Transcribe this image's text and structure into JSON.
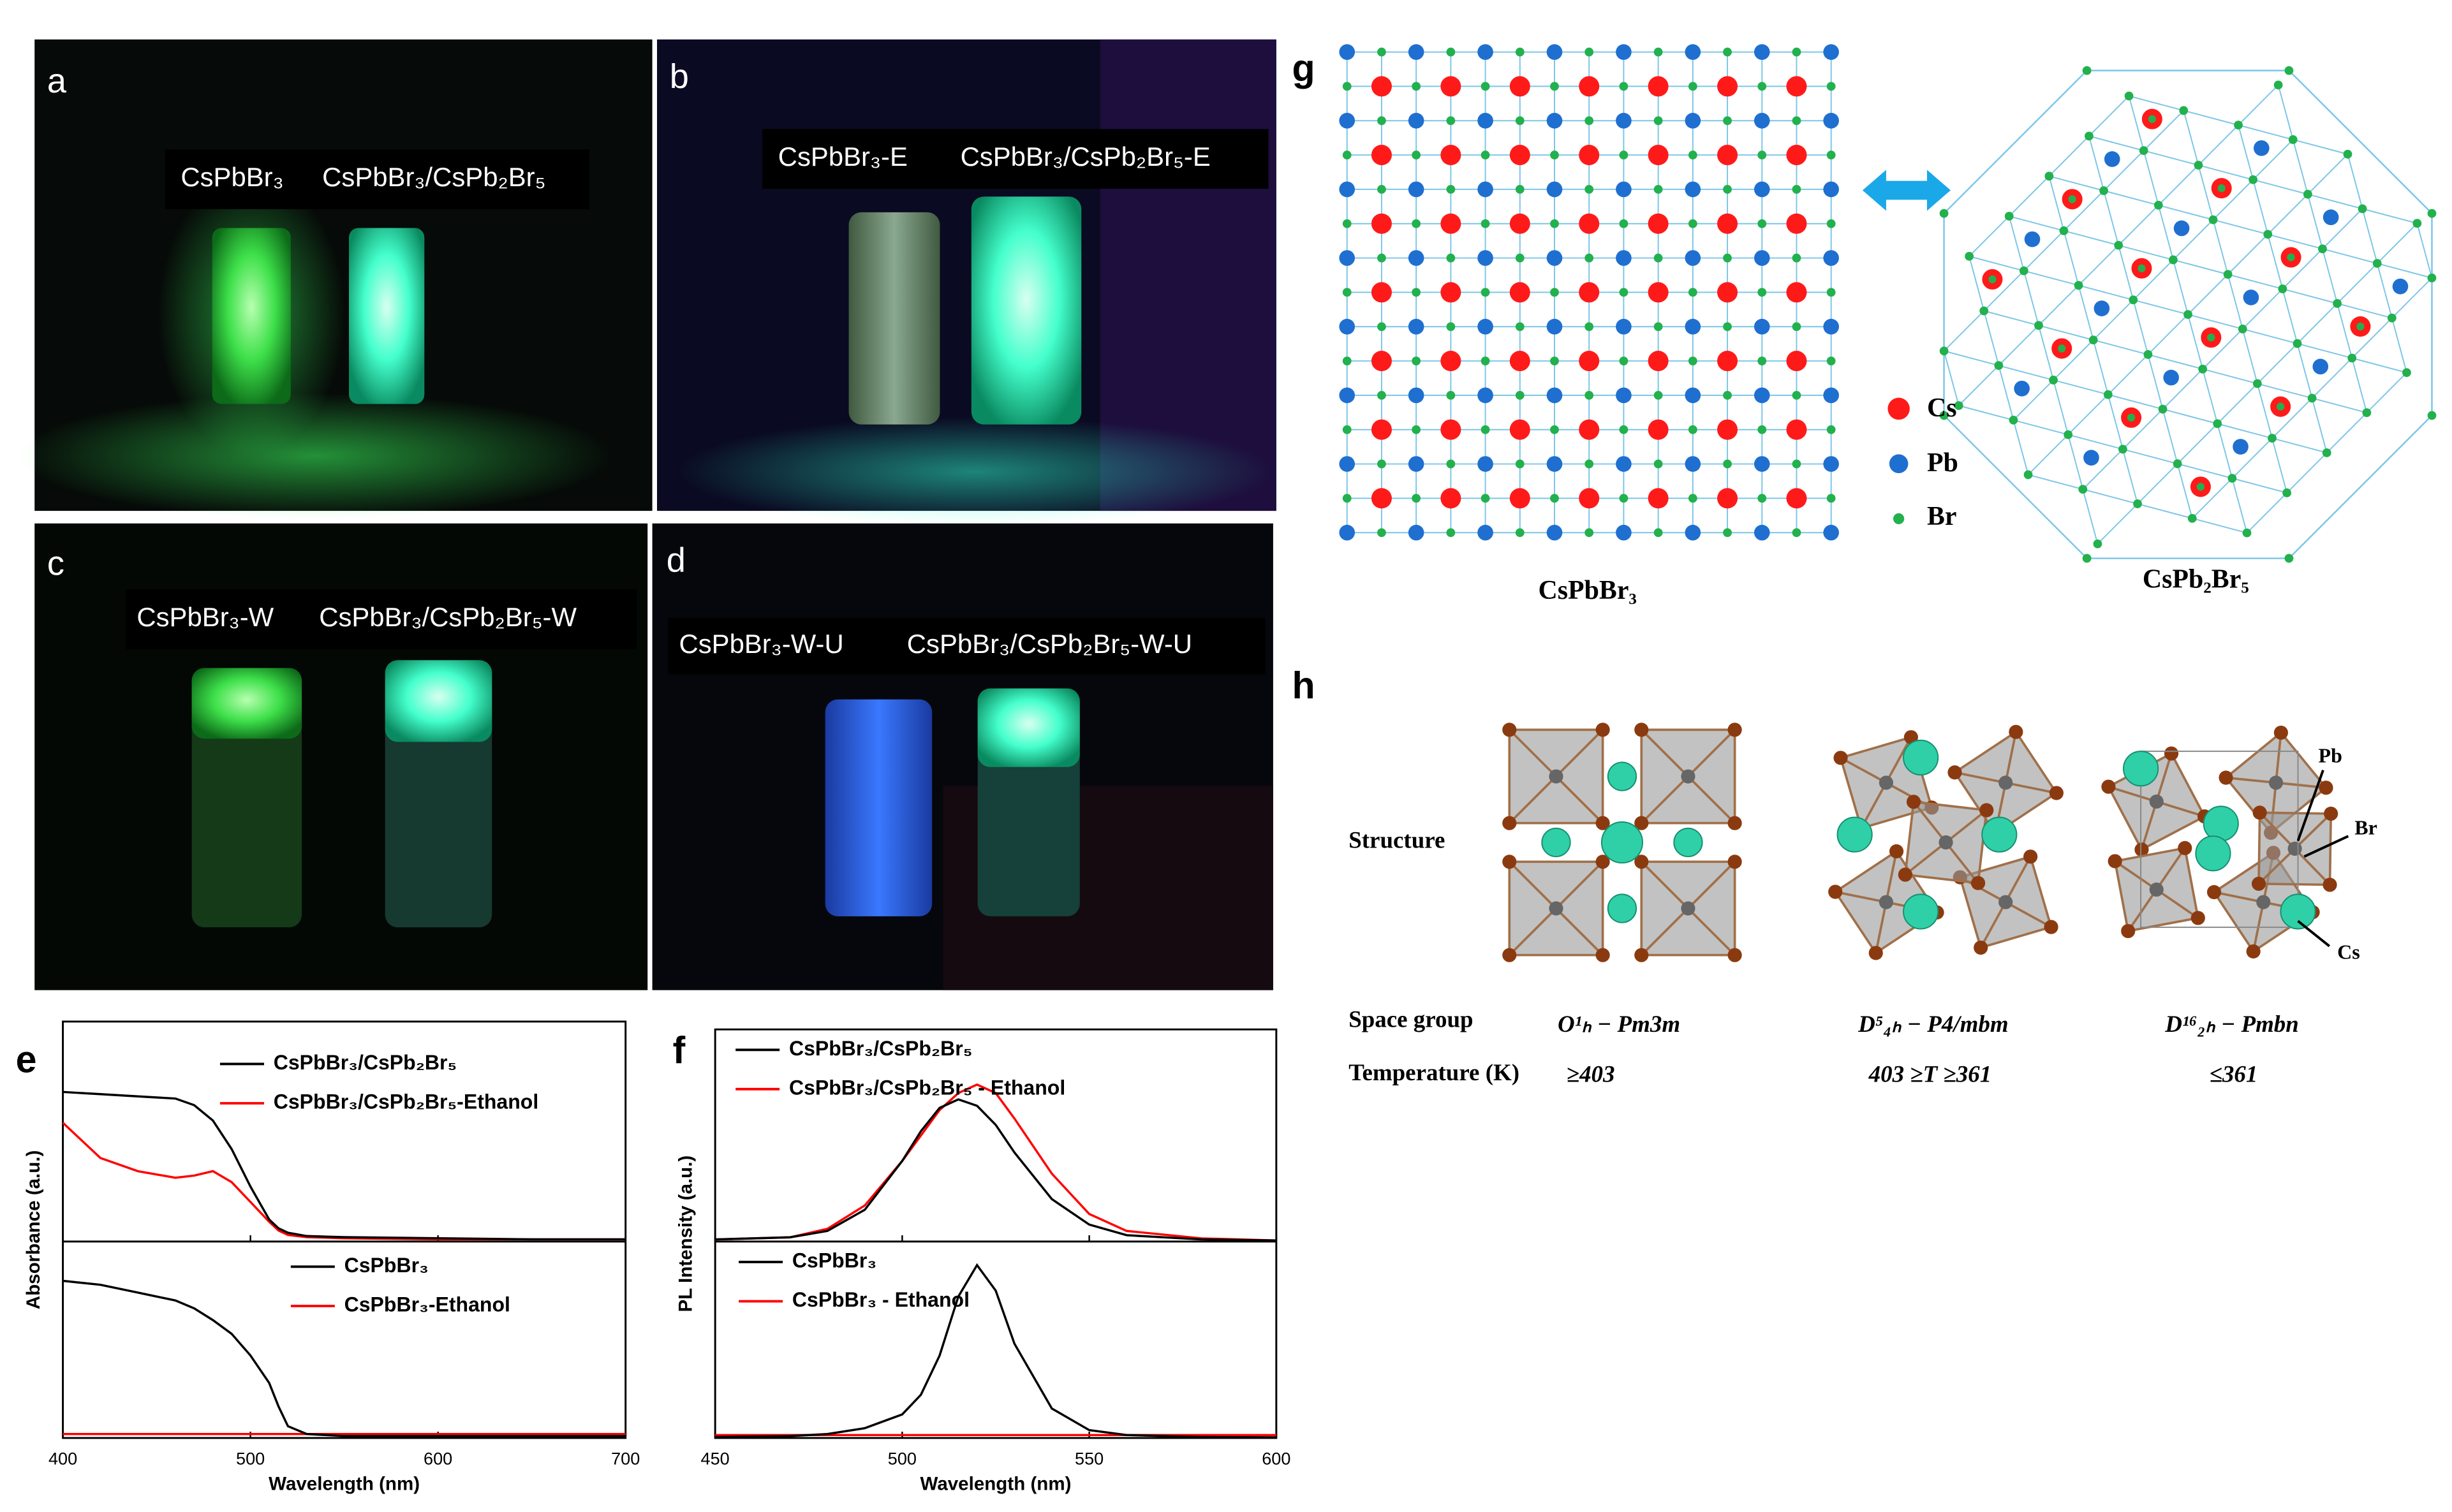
{
  "panels": {
    "a": {
      "letter": "a",
      "labels": [
        "CsPbBr₃",
        "CsPbBr₃/CsPb₂Br₅"
      ]
    },
    "b": {
      "letter": "b",
      "labels": [
        "CsPbBr₃-E",
        "CsPbBr₃/CsPb₂Br₅-E"
      ]
    },
    "c": {
      "letter": "c",
      "labels": [
        "CsPbBr₃-W",
        "CsPbBr₃/CsPb₂Br₅-W"
      ]
    },
    "d": {
      "letter": "d",
      "labels": [
        "CsPbBr₃-W-U",
        "CsPbBr₃/CsPb₂Br₅-W-U"
      ]
    },
    "e": {
      "letter": "e"
    },
    "f": {
      "letter": "f"
    },
    "g": {
      "letter": "g",
      "legend": [
        "Cs",
        "Pb",
        "Br"
      ],
      "captions": [
        "CsPbBr₃",
        "CsPb₂Br₅"
      ]
    },
    "h": {
      "letter": "h",
      "rows": [
        "Structure",
        "Space group",
        "Temperature (K)"
      ],
      "space_groups": [
        "O¹ₕ − Pm3m",
        "D⁵₄ₕ − P4/mbm",
        "D¹⁶₂ₕ − Pmbn"
      ],
      "temperatures": [
        "≥403",
        "403 ≥T ≥361",
        "≤361"
      ],
      "annotations": [
        "Pb",
        "Br",
        "Cs"
      ]
    }
  },
  "chart_data": [
    {
      "type": "line",
      "xlabel": "Wavelength (nm)",
      "ylabel": "Absorbance (a.u.)",
      "x": [
        400,
        420,
        440,
        460,
        470,
        480,
        490,
        500,
        510,
        515,
        520,
        530,
        550,
        600,
        650,
        700
      ],
      "xlim": [
        400,
        700
      ],
      "xticks": [
        400,
        500,
        600,
        700
      ],
      "subplots": [
        {
          "ylim": [
            0,
            1
          ],
          "series": [
            {
              "name": "CsPbBr₃/CsPb₂Br₅",
              "color": "#000000",
              "values": [
                0.68,
                0.67,
                0.66,
                0.65,
                0.62,
                0.55,
                0.42,
                0.25,
                0.1,
                0.06,
                0.04,
                0.025,
                0.02,
                0.015,
                0.01,
                0.01
              ]
            },
            {
              "name": "CsPbBr₃/CsPb₂Br₅-Ethanol",
              "color": "#ff0000",
              "values": [
                0.54,
                0.38,
                0.32,
                0.29,
                0.3,
                0.32,
                0.27,
                0.18,
                0.09,
                0.05,
                0.03,
                0.02,
                0.015,
                0.01,
                0.01,
                0.01
              ]
            }
          ]
        },
        {
          "ylim": [
            0,
            1
          ],
          "series": [
            {
              "name": "CsPbBr₃",
              "color": "#000000",
              "values": [
                0.8,
                0.78,
                0.74,
                0.7,
                0.66,
                0.6,
                0.53,
                0.42,
                0.28,
                0.16,
                0.06,
                0.02,
                0.01,
                0.01,
                0.01,
                0.01
              ]
            },
            {
              "name": "CsPbBr₃-Ethanol",
              "color": "#ff0000",
              "values": [
                0.02,
                0.02,
                0.02,
                0.02,
                0.02,
                0.02,
                0.02,
                0.02,
                0.02,
                0.02,
                0.02,
                0.02,
                0.02,
                0.02,
                0.02,
                0.02
              ]
            }
          ]
        }
      ]
    },
    {
      "type": "line",
      "xlabel": "Wavelength (nm)",
      "ylabel": "PL  Intensity (a.u.)",
      "x": [
        450,
        470,
        480,
        490,
        500,
        505,
        510,
        515,
        520,
        525,
        530,
        540,
        550,
        560,
        580,
        600
      ],
      "xlim": [
        450,
        600
      ],
      "xticks": [
        450,
        500,
        550,
        600
      ],
      "subplots": [
        {
          "ylim": [
            0,
            1
          ],
          "series": [
            {
              "name": "CsPbBr₃/CsPb₂Br₅",
              "color": "#000000",
              "values": [
                0.01,
                0.02,
                0.05,
                0.15,
                0.38,
                0.52,
                0.63,
                0.67,
                0.64,
                0.55,
                0.42,
                0.2,
                0.08,
                0.03,
                0.01,
                0.005
              ]
            },
            {
              "name": "CsPbBr₃/CsPb₂Br₅ - Ethanol",
              "color": "#ff0000",
              "values": [
                0.01,
                0.02,
                0.06,
                0.17,
                0.38,
                0.5,
                0.62,
                0.7,
                0.74,
                0.7,
                0.58,
                0.32,
                0.13,
                0.05,
                0.015,
                0.005
              ]
            }
          ]
        },
        {
          "ylim": [
            0,
            1
          ],
          "series": [
            {
              "name": "CsPbBr₃",
              "color": "#000000",
              "values": [
                0.005,
                0.01,
                0.02,
                0.05,
                0.12,
                0.22,
                0.42,
                0.72,
                0.88,
                0.75,
                0.48,
                0.15,
                0.04,
                0.015,
                0.005,
                0.003
              ]
            },
            {
              "name": "CsPbBr₃ - Ethanol",
              "color": "#ff0000",
              "values": [
                0.015,
                0.015,
                0.015,
                0.015,
                0.015,
                0.015,
                0.015,
                0.015,
                0.015,
                0.015,
                0.015,
                0.015,
                0.015,
                0.015,
                0.015,
                0.015
              ]
            }
          ]
        }
      ]
    }
  ]
}
